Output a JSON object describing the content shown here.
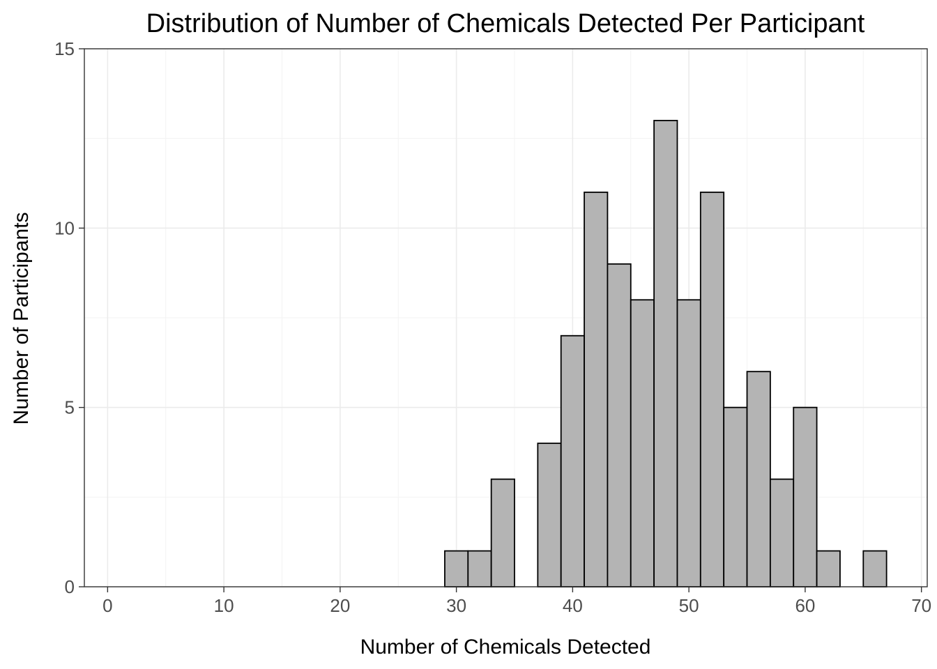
{
  "chart_data": {
    "type": "bar",
    "title": "Distribution of Number of Chemicals Detected Per Participant",
    "xlabel": "Number of Chemicals Detected",
    "ylabel": "Number of Participants",
    "xlim": [
      -2,
      70.5
    ],
    "ylim": [
      0,
      15
    ],
    "xticks": [
      0,
      10,
      20,
      30,
      40,
      50,
      60,
      70
    ],
    "xtick_labels": [
      "0",
      "10",
      "20",
      "30",
      "40",
      "50",
      "60",
      "70"
    ],
    "yticks": [
      0,
      5,
      10,
      15
    ],
    "ytick_labels": [
      "0",
      "5",
      "10",
      "15"
    ],
    "bin_width": 2,
    "bin_centers": [
      30,
      32,
      34,
      36,
      38,
      40,
      42,
      44,
      46,
      48,
      50,
      52,
      54,
      56,
      58,
      60,
      62,
      64,
      66
    ],
    "counts": [
      1,
      1,
      3,
      0,
      4,
      7,
      11,
      9,
      8,
      13,
      8,
      11,
      5,
      6,
      3,
      5,
      1,
      0,
      1
    ],
    "bar_fill": "#b4b4b4",
    "bar_stroke": "#000000",
    "grid": true,
    "legend": "none"
  }
}
